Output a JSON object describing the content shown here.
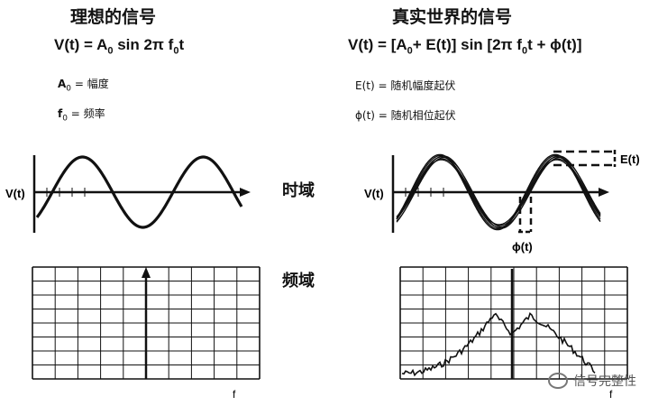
{
  "ideal": {
    "title": "理想的信号",
    "formula": {
      "lhs": "V(t) = A",
      "sub0": "0",
      "mid": " sin 2π f",
      "sub1": "0",
      "tail": "t"
    },
    "def_a": {
      "sym": "A",
      "sub": "0",
      "text": " = 幅度"
    },
    "def_f": {
      "sym": "f",
      "sub": "0",
      "text": " = 频率"
    },
    "time_ylabel": "V(t)",
    "freq_xlabel": "f"
  },
  "real": {
    "title": "真实世界的信号",
    "formula": {
      "p1": "V(t) = [A",
      "sub0": "0",
      "p2": "+ E(t)] sin [2π f",
      "sub1": "0",
      "p3": "t + ϕ(t)]"
    },
    "def_e": "E(t) = 随机幅度起伏",
    "def_phi": "ϕ(t) = 随机相位起伏",
    "time_ylabel": "V(t)",
    "e_label": "E(t)",
    "phi_label": "ϕ(t)",
    "freq_xlabel": "f"
  },
  "labels": {
    "time_domain": "时域",
    "freq_domain": "频域"
  },
  "watermark": "信号完整性"
}
